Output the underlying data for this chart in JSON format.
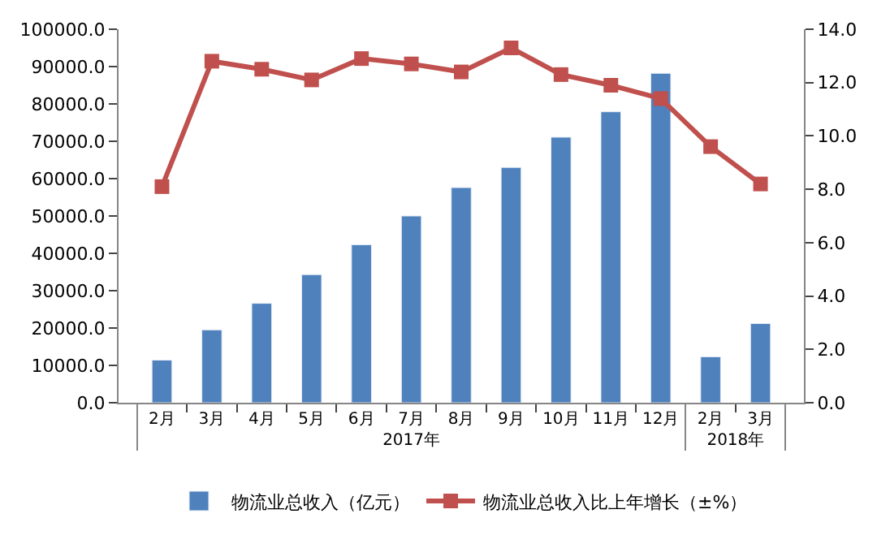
{
  "chart_data": {
    "type": "bar",
    "categories": [
      "2月",
      "3月",
      "4月",
      "5月",
      "6月",
      "7月",
      "8月",
      "9月",
      "10月",
      "11月",
      "12月",
      "2月",
      "3月"
    ],
    "annotations": [
      "2017年",
      "2018年"
    ],
    "series": [
      {
        "name": "物流业总收入（亿元）",
        "color": "#4f81bd",
        "values": [
          11400,
          19500,
          26600,
          34300,
          42300,
          50000,
          57600,
          63000,
          71100,
          77900,
          88200,
          12300,
          21200
        ]
      },
      {
        "name": "物流业总收入比上年增长（±%）",
        "type": "line",
        "axis": "y2",
        "color": "#c0504d",
        "marker": "square",
        "values": [
          8.1,
          12.8,
          12.5,
          12.1,
          12.9,
          12.7,
          12.4,
          13.3,
          12.3,
          11.9,
          11.4,
          9.6,
          8.2
        ]
      }
    ],
    "ylim": [
      0,
      100000
    ],
    "yticks": [
      {
        "value": 0,
        "label": "0.0"
      },
      {
        "value": 10000,
        "label": "10000.0"
      },
      {
        "value": 20000,
        "label": "20000.0"
      },
      {
        "value": 30000,
        "label": "30000.0"
      },
      {
        "value": 40000,
        "label": "40000.0"
      },
      {
        "value": 50000,
        "label": "50000.0"
      },
      {
        "value": 60000,
        "label": "60000.0"
      },
      {
        "value": 70000,
        "label": "70000.0"
      },
      {
        "value": 80000,
        "label": "80000.0"
      },
      {
        "value": 90000,
        "label": "90000.0"
      },
      {
        "value": 100000,
        "label": "100000.0"
      }
    ],
    "y2lim": [
      0,
      14
    ],
    "y2ticks": [
      {
        "value": 0,
        "label": "0.0"
      },
      {
        "value": 2,
        "label": "2.0"
      },
      {
        "value": 4,
        "label": "4.0"
      },
      {
        "value": 6,
        "label": "6.0"
      },
      {
        "value": 8,
        "label": "8.0"
      },
      {
        "value": 10,
        "label": "10.0"
      },
      {
        "value": 12,
        "label": "12.0"
      },
      {
        "value": 14,
        "label": "14.0"
      }
    ],
    "grid": false,
    "legend": "bottom"
  }
}
